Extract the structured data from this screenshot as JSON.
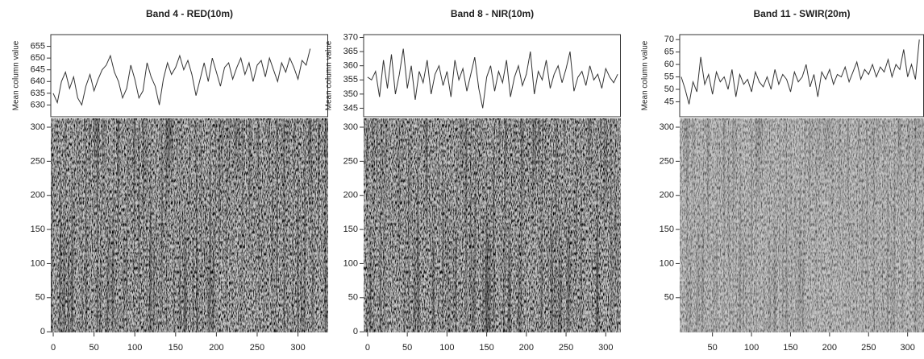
{
  "chart_data": [
    {
      "type": "line",
      "title": "Band 4 - RED(10m)",
      "ylabel": "Mean column value",
      "color": "#333333",
      "x": [
        0,
        5,
        10,
        15,
        20,
        25,
        30,
        35,
        40,
        45,
        50,
        55,
        60,
        65,
        70,
        75,
        80,
        85,
        90,
        95,
        100,
        105,
        110,
        115,
        120,
        125,
        130,
        135,
        140,
        145,
        150,
        155,
        160,
        165,
        170,
        175,
        180,
        185,
        190,
        195,
        200,
        205,
        210,
        215,
        220,
        225,
        230,
        235,
        240,
        245,
        250,
        255,
        260,
        265,
        270,
        275,
        280,
        285,
        290,
        295,
        300,
        305,
        310,
        315
      ],
      "values": [
        635,
        631,
        640,
        644,
        637,
        642,
        633,
        630,
        638,
        643,
        636,
        641,
        645,
        647,
        651,
        644,
        640,
        633,
        637,
        647,
        641,
        633,
        636,
        648,
        642,
        638,
        630,
        641,
        648,
        643,
        646,
        651,
        645,
        649,
        643,
        634,
        641,
        648,
        640,
        650,
        644,
        638,
        646,
        648,
        641,
        646,
        650,
        643,
        648,
        640,
        647,
        649,
        642,
        650,
        645,
        640,
        648,
        644,
        650,
        646,
        641,
        649,
        647,
        654
      ],
      "xlim": [
        -3,
        337
      ],
      "ylim": [
        625,
        660
      ],
      "yticks": [
        630,
        635,
        640,
        645,
        650,
        655
      ],
      "image": {
        "ylim": [
          -1,
          313
        ],
        "yticks": [
          0,
          50,
          100,
          150,
          200,
          250,
          300
        ],
        "xticks": [
          0,
          50,
          100,
          150,
          200,
          250,
          300
        ]
      }
    },
    {
      "type": "line",
      "title": "Band 8 - NIR(10m)",
      "ylabel": "Mean column value",
      "color": "#333333",
      "x": [
        0,
        5,
        10,
        15,
        20,
        25,
        30,
        35,
        40,
        45,
        50,
        55,
        60,
        65,
        70,
        75,
        80,
        85,
        90,
        95,
        100,
        105,
        110,
        115,
        120,
        125,
        130,
        135,
        140,
        145,
        150,
        155,
        160,
        165,
        170,
        175,
        180,
        185,
        190,
        195,
        200,
        205,
        210,
        215,
        220,
        225,
        230,
        235,
        240,
        245,
        250,
        255,
        260,
        265,
        270,
        275,
        280,
        285,
        290,
        295,
        300,
        305,
        310,
        315
      ],
      "values": [
        356,
        355,
        358,
        349,
        362,
        352,
        364,
        350,
        357,
        366,
        352,
        360,
        348,
        358,
        354,
        362,
        350,
        357,
        360,
        353,
        358,
        349,
        362,
        355,
        359,
        351,
        357,
        363,
        352,
        345,
        356,
        360,
        351,
        358,
        354,
        362,
        349,
        356,
        360,
        353,
        357,
        365,
        350,
        358,
        355,
        362,
        352,
        357,
        360,
        354,
        359,
        365,
        351,
        356,
        358,
        353,
        360,
        355,
        357,
        352,
        359,
        356,
        354,
        357
      ],
      "xlim": [
        -5,
        319
      ],
      "ylim": [
        342,
        371
      ],
      "yticks": [
        345,
        350,
        355,
        360,
        365,
        370
      ],
      "image": {
        "ylim": [
          -1,
          313
        ],
        "yticks": [
          0,
          50,
          100,
          150,
          200,
          250,
          300
        ],
        "xticks": [
          0,
          50,
          100,
          150,
          200,
          250,
          300
        ]
      }
    },
    {
      "type": "line",
      "title": "Band 11 - SWIR(20m)",
      "ylabel": "Mean column value",
      "color": "#333333",
      "x": [
        10,
        15,
        20,
        25,
        30,
        35,
        40,
        45,
        50,
        55,
        60,
        65,
        70,
        75,
        80,
        85,
        90,
        95,
        100,
        105,
        110,
        115,
        120,
        125,
        130,
        135,
        140,
        145,
        150,
        155,
        160,
        165,
        170,
        175,
        180,
        185,
        190,
        195,
        200,
        205,
        210,
        215,
        220,
        225,
        230,
        235,
        240,
        245,
        250,
        255,
        260,
        265,
        270,
        275,
        280,
        285,
        290,
        295,
        300,
        305,
        310,
        315
      ],
      "values": [
        55,
        50,
        44,
        53,
        49,
        63,
        52,
        56,
        48,
        57,
        53,
        55,
        50,
        58,
        47,
        56,
        52,
        54,
        49,
        57,
        53,
        51,
        55,
        50,
        58,
        52,
        56,
        54,
        49,
        57,
        53,
        55,
        60,
        51,
        56,
        47,
        57,
        54,
        58,
        52,
        56,
        55,
        59,
        53,
        57,
        61,
        54,
        58,
        56,
        60,
        55,
        59,
        57,
        62,
        55,
        60,
        58,
        66,
        55,
        60,
        54,
        70
      ],
      "xlim": [
        8,
        321
      ],
      "ylim": [
        39,
        72
      ],
      "yticks": [
        45,
        50,
        55,
        60,
        65,
        70
      ],
      "image": {
        "ylim": [
          -1,
          313
        ],
        "yticks": [
          50,
          100,
          150,
          200,
          250,
          300
        ],
        "xticks": [
          50,
          100,
          150,
          200,
          250,
          300
        ]
      }
    }
  ]
}
